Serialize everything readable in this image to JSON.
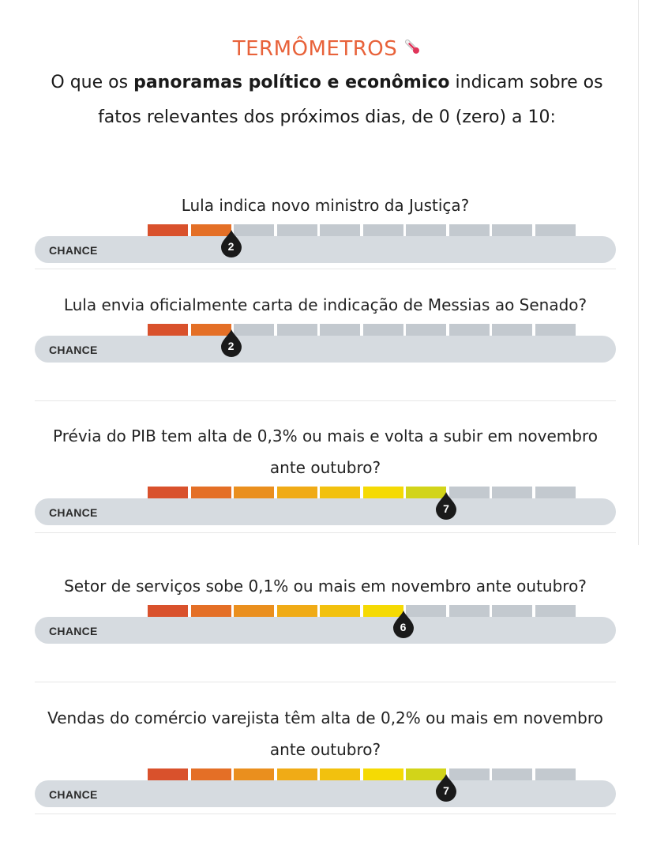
{
  "header": {
    "title": "TERMÔMETROS",
    "title_icon": "thermometer-icon",
    "intro_before": "O que os ",
    "intro_bold": "panoramas político e econômico",
    "intro_after": " indicam sobre os fatos relevantes dos próximos dias, de 0 (zero) a 10:"
  },
  "chance_label": "CHANCE",
  "scale_max": 10,
  "colors": {
    "title": "#e8623a",
    "track": "#d6dbe0",
    "inactive_segment": "#c3c9cf",
    "pin": "#1a1a1a",
    "segments": [
      "#d9512c",
      "#e46f26",
      "#ea8f1e",
      "#f0ab16",
      "#f2c10e",
      "#f5da04",
      "#d2d419",
      "#aec92b",
      "#8cbf3a",
      "#6db548"
    ]
  },
  "items": [
    {
      "question": "Lula indica novo ministro da Justiça?",
      "value": 2
    },
    {
      "question": "Lula envia oficialmente carta de indicação de Messias ao Senado?",
      "value": 2
    },
    {
      "question": "Prévia do PIB tem alta de 0,3% ou mais e volta a subir em novembro ante outubro?",
      "value": 7
    },
    {
      "question": "Setor de serviços sobe 0,1% ou mais em novembro ante outubro?",
      "value": 6
    },
    {
      "question": "Vendas do comércio varejista têm alta de 0,2% ou mais em novembro ante outubro?",
      "value": 7
    }
  ]
}
